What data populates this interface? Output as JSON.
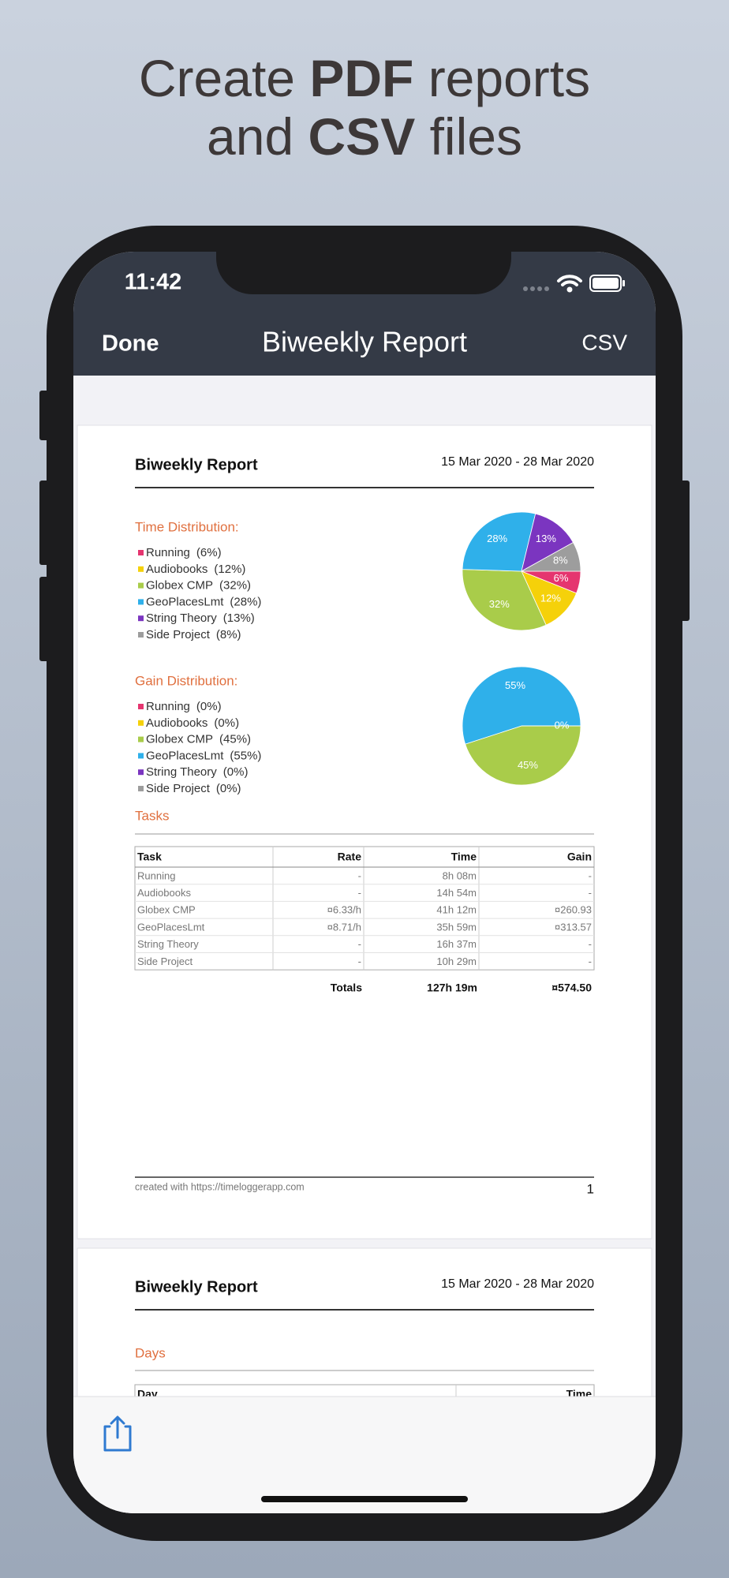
{
  "headline": {
    "line1": [
      "Create",
      "PDF",
      "reports"
    ],
    "line2": [
      "and",
      "CSV",
      "files"
    ]
  },
  "status_bar": {
    "time": "11:42"
  },
  "nav": {
    "left": "Done",
    "title": "Biweekly Report",
    "right": "CSV"
  },
  "page1": {
    "title": "Biweekly Report",
    "date_range": "15 Mar 2020 - 28 Mar 2020",
    "time_distribution": {
      "type": "pie",
      "heading": "Time Distribution:",
      "categories": [
        "Running",
        "Audiobooks",
        "Globex CMP",
        "GeoPlacesLmt",
        "String Theory",
        "Side Project"
      ],
      "values": [
        6,
        12,
        32,
        28,
        13,
        8
      ],
      "legend_labels": [
        "(6%)",
        "(12%)",
        "(32%)",
        "(28%)",
        "(13%)",
        "(8%)"
      ],
      "value_labels": [
        "6%",
        "12%",
        "32%",
        "28%",
        "13%",
        "8%"
      ],
      "colors": [
        "#e5356f",
        "#f5d10a",
        "#a9cc4a",
        "#2fb0ea",
        "#7b35c0",
        "#9d9d9d"
      ]
    },
    "gain_distribution": {
      "type": "pie",
      "heading": "Gain Distribution:",
      "categories": [
        "Running",
        "Audiobooks",
        "Globex CMP",
        "GeoPlacesLmt",
        "String Theory",
        "Side Project"
      ],
      "values": [
        0,
        0,
        45,
        55,
        0,
        0
      ],
      "legend_labels": [
        "(0%)",
        "(0%)",
        "(45%)",
        "(55%)",
        "(0%)",
        "(0%)"
      ],
      "value_labels": [
        "0%",
        null,
        "45%",
        "55%",
        null,
        null
      ],
      "colors": [
        "#e5356f",
        "#f5d10a",
        "#a9cc4a",
        "#2fb0ea",
        "#7b35c0",
        "#9d9d9d"
      ]
    },
    "tasks": {
      "heading": "Tasks",
      "columns": [
        "Task",
        "Rate",
        "Time",
        "Gain"
      ],
      "rows": [
        [
          "Running",
          "-",
          "8h 08m",
          "-"
        ],
        [
          "Audiobooks",
          "-",
          "14h 54m",
          "-"
        ],
        [
          "Globex CMP",
          "¤6.33/h",
          "41h 12m",
          "¤260.93"
        ],
        [
          "GeoPlacesLmt",
          "¤8.71/h",
          "35h 59m",
          "¤313.57"
        ],
        [
          "String Theory",
          "-",
          "16h 37m",
          "-"
        ],
        [
          "Side Project",
          "-",
          "10h 29m",
          "-"
        ]
      ],
      "totals": [
        "Totals",
        "127h 19m",
        "¤574.50"
      ]
    },
    "footer": {
      "credit": "created with https://timeloggerapp.com",
      "page_number": "1"
    }
  },
  "page2": {
    "title": "Biweekly Report",
    "date_range": "15 Mar 2020 - 28 Mar 2020",
    "days": {
      "heading": "Days",
      "columns": [
        "Day",
        "Time"
      ]
    }
  }
}
